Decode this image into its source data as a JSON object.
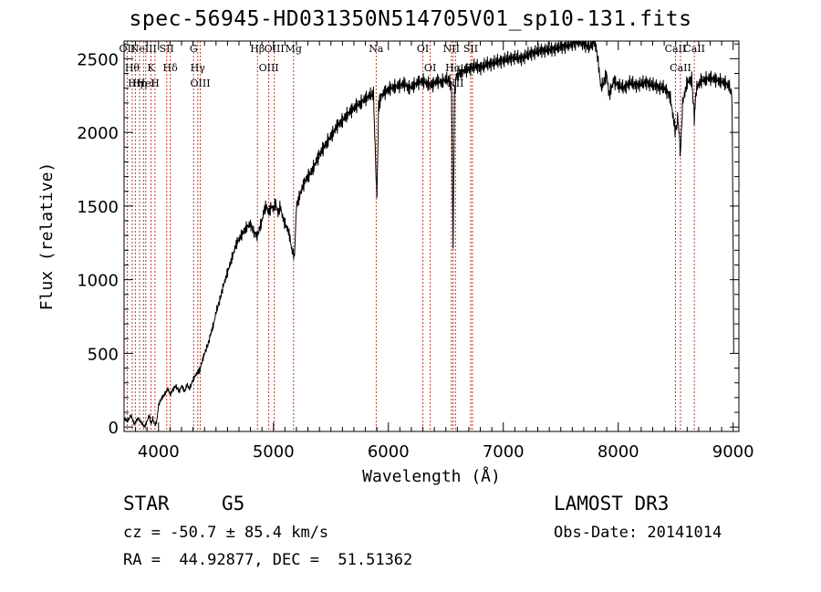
{
  "header": {
    "title": "spec-56945-HD031350N514705V01_sp10-131.fits"
  },
  "info": {
    "object_class": "STAR",
    "subclass": "G5",
    "survey": "LAMOST DR3",
    "cz": "cz = -50.7 ± 85.4 km/s",
    "obs_date": "Obs-Date: 20141014",
    "coords": "RA =  44.92877, DEC =  51.51362"
  },
  "colors": {
    "line_marker": "#c0392b",
    "spectrum": "#000000",
    "axes": "#000000"
  },
  "chart_data": {
    "type": "line",
    "title": "spec-56945-HD031350N514705V01_sp10-131.fits",
    "xlabel": "Wavelength (Å)",
    "ylabel": "Flux (relative)",
    "xlim": [
      3700,
      9050
    ],
    "ylim": [
      -30,
      2620
    ],
    "xticks": [
      4000,
      5000,
      6000,
      7000,
      8000,
      9000
    ],
    "yticks": [
      0,
      500,
      1000,
      1500,
      2000,
      2500
    ],
    "grid": false,
    "series": [
      {
        "name": "spectrum",
        "x": [
          3700,
          3730,
          3760,
          3790,
          3820,
          3850,
          3880,
          3900,
          3920,
          3935,
          3950,
          3968,
          3985,
          4000,
          4030,
          4060,
          4080,
          4101,
          4120,
          4150,
          4180,
          4200,
          4227,
          4250,
          4270,
          4300,
          4320,
          4340,
          4361,
          4380,
          4400,
          4430,
          4460,
          4480,
          4500,
          4530,
          4560,
          4600,
          4640,
          4680,
          4720,
          4760,
          4800,
          4830,
          4861,
          4880,
          4900,
          4920,
          4940,
          4960,
          4980,
          5000,
          5020,
          5040,
          5060,
          5080,
          5100,
          5120,
          5140,
          5160,
          5183,
          5200,
          5240,
          5280,
          5320,
          5360,
          5400,
          5440,
          5480,
          5520,
          5560,
          5600,
          5640,
          5680,
          5720,
          5760,
          5800,
          5840,
          5870,
          5893,
          5900,
          5915,
          5940,
          5980,
          6020,
          6060,
          6100,
          6140,
          6180,
          6220,
          6260,
          6300,
          6340,
          6380,
          6420,
          6460,
          6500,
          6530,
          6550,
          6563,
          6575,
          6590,
          6620,
          6660,
          6700,
          6750,
          6800,
          6850,
          6900,
          6950,
          7000,
          7050,
          7100,
          7150,
          7200,
          7250,
          7300,
          7350,
          7400,
          7450,
          7500,
          7550,
          7600,
          7650,
          7700,
          7750,
          7800,
          7830,
          7850,
          7880,
          7900,
          7920,
          7940,
          7960,
          8000,
          8050,
          8100,
          8150,
          8200,
          8250,
          8300,
          8350,
          8400,
          8450,
          8498,
          8520,
          8542,
          8560,
          8600,
          8640,
          8662,
          8680,
          8720,
          8760,
          8800,
          8840,
          8880,
          8920,
          8960,
          8990,
          9000,
          9005
        ],
        "values": [
          60,
          40,
          80,
          20,
          60,
          30,
          0,
          40,
          80,
          20,
          60,
          10,
          40,
          150,
          200,
          230,
          260,
          220,
          250,
          280,
          240,
          280,
          240,
          290,
          260,
          320,
          350,
          370,
          390,
          450,
          500,
          560,
          650,
          700,
          780,
          850,
          950,
          1050,
          1150,
          1250,
          1300,
          1350,
          1380,
          1320,
          1300,
          1350,
          1400,
          1480,
          1500,
          1450,
          1500,
          1480,
          1520,
          1450,
          1500,
          1420,
          1380,
          1350,
          1300,
          1200,
          1160,
          1500,
          1600,
          1680,
          1720,
          1780,
          1850,
          1900,
          1950,
          2000,
          2050,
          2080,
          2120,
          2150,
          2180,
          2200,
          2230,
          2250,
          2260,
          1700,
          1560,
          2180,
          2250,
          2280,
          2300,
          2310,
          2320,
          2330,
          2300,
          2320,
          2340,
          2350,
          2330,
          2320,
          2350,
          2340,
          2360,
          2350,
          2300,
          1220,
          2250,
          2380,
          2400,
          2420,
          2430,
          2450,
          2440,
          2460,
          2470,
          2480,
          2490,
          2500,
          2510,
          2500,
          2520,
          2540,
          2550,
          2560,
          2560,
          2570,
          2580,
          2590,
          2600,
          2620,
          2600,
          2580,
          2620,
          2450,
          2300,
          2350,
          2400,
          2250,
          2300,
          2350,
          2320,
          2300,
          2340,
          2320,
          2330,
          2340,
          2320,
          2310,
          2300,
          2250,
          2000,
          2100,
          1850,
          2200,
          2340,
          2360,
          2100,
          2300,
          2350,
          2360,
          2370,
          2360,
          2350,
          2340,
          2320,
          2250,
          1200,
          500
        ]
      }
    ],
    "line_markers": [
      {
        "wavelength": 3727,
        "labels": [
          "OII"
        ]
      },
      {
        "wavelength": 3771,
        "labels": [
          "Hθ"
        ]
      },
      {
        "wavelength": 3798,
        "labels": [
          "Hη"
        ]
      },
      {
        "wavelength": 3835,
        "labels": [
          "Hη"
        ]
      },
      {
        "wavelength": 3869,
        "labels": [
          "NeIII"
        ]
      },
      {
        "wavelength": 3889,
        "labels": [
          "HeI"
        ]
      },
      {
        "wavelength": 3934,
        "labels": [
          "K"
        ]
      },
      {
        "wavelength": 3969,
        "labels": [
          "H"
        ]
      },
      {
        "wavelength": 4071,
        "labels": [
          "SII"
        ]
      },
      {
        "wavelength": 4102,
        "labels": [
          "Hδ"
        ]
      },
      {
        "wavelength": 4305,
        "labels": [
          "G"
        ]
      },
      {
        "wavelength": 4341,
        "labels": [
          "Hγ"
        ]
      },
      {
        "wavelength": 4363,
        "labels": [
          "OIII"
        ]
      },
      {
        "wavelength": 4861,
        "labels": [
          "Hβ"
        ]
      },
      {
        "wavelength": 4959,
        "labels": [
          "OIII"
        ]
      },
      {
        "wavelength": 5007,
        "labels": [
          "OIII"
        ]
      },
      {
        "wavelength": 5175,
        "labels": [
          "Mg"
        ]
      },
      {
        "wavelength": 5894,
        "labels": [
          "Na"
        ]
      },
      {
        "wavelength": 6300,
        "labels": [
          "OI"
        ]
      },
      {
        "wavelength": 6364,
        "labels": [
          "OI"
        ]
      },
      {
        "wavelength": 6548,
        "labels": [
          "NII"
        ]
      },
      {
        "wavelength": 6563,
        "labels": [
          "Hα"
        ]
      },
      {
        "wavelength": 6584,
        "labels": [
          "NII"
        ]
      },
      {
        "wavelength": 6716,
        "labels": [
          "SII"
        ]
      },
      {
        "wavelength": 6731,
        "labels": [
          "SII"
        ]
      },
      {
        "wavelength": 8498,
        "labels": [
          "CaII"
        ]
      },
      {
        "wavelength": 8542,
        "labels": [
          "CaII"
        ]
      },
      {
        "wavelength": 8662,
        "labels": [
          "CaII"
        ]
      }
    ]
  }
}
